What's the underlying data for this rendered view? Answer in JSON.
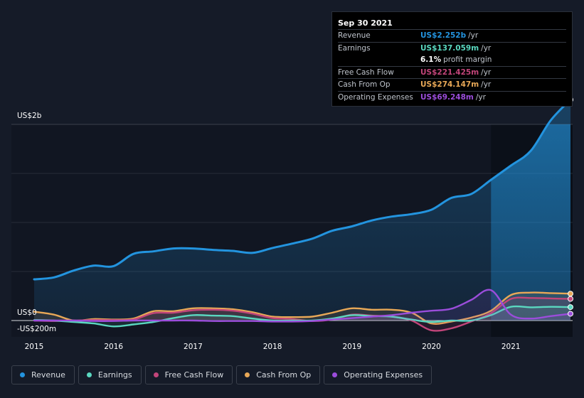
{
  "colors": {
    "background": "#151b28",
    "plot_bg": "#111622",
    "revenue": "#2394df",
    "earnings": "#5ad8c0",
    "free_cash_flow": "#c2457a",
    "cash_from_op": "#e8a857",
    "operating_expenses": "#9b4ddb",
    "grid": "#262c38",
    "axis_text": "#ffffff"
  },
  "tooltip": {
    "date": "Sep 30 2021",
    "rows": [
      {
        "label": "Revenue",
        "value": "US$2.252b",
        "unit": "/yr",
        "color": "#2394df"
      },
      {
        "label": "Earnings",
        "value": "US$137.059m",
        "unit": "/yr",
        "color": "#5ad8c0"
      },
      {
        "label": "",
        "value": "6.1%",
        "unit": "profit margin",
        "color": "#ffffff"
      },
      {
        "label": "Free Cash Flow",
        "value": "US$221.425m",
        "unit": "/yr",
        "color": "#c2457a"
      },
      {
        "label": "Cash From Op",
        "value": "US$274.147m",
        "unit": "/yr",
        "color": "#e8a857"
      },
      {
        "label": "Operating Expenses",
        "value": "US$69.248m",
        "unit": "/yr",
        "color": "#9b4ddb"
      }
    ]
  },
  "legend": [
    {
      "label": "Revenue",
      "color": "#2394df",
      "icon": "revenue-dot-icon"
    },
    {
      "label": "Earnings",
      "color": "#5ad8c0",
      "icon": "earnings-dot-icon"
    },
    {
      "label": "Free Cash Flow",
      "color": "#c2457a",
      "icon": "free-cash-flow-dot-icon"
    },
    {
      "label": "Cash From Op",
      "color": "#e8a857",
      "icon": "cash-from-op-dot-icon"
    },
    {
      "label": "Operating Expenses",
      "color": "#9b4ddb",
      "icon": "operating-expenses-dot-icon"
    }
  ],
  "chart_data": {
    "type": "line",
    "title": "",
    "y_unit": "US$m",
    "ylim": [
      -200,
      2400
    ],
    "y_tick_labels": [
      {
        "value": 2000,
        "label": "US$2b"
      },
      {
        "value": 0,
        "label": "US$0"
      },
      {
        "value": -200,
        "label": "-US$200m"
      }
    ],
    "x_range": [
      2015.0,
      2021.75
    ],
    "x_tick_labels": [
      "2015",
      "2016",
      "2017",
      "2018",
      "2019",
      "2020",
      "2021"
    ],
    "highlight_range": [
      2020.75,
      2021.75
    ],
    "series": [
      {
        "name": "Revenue",
        "key": "revenue",
        "fill": true,
        "points": [
          [
            2015.0,
            420
          ],
          [
            2015.25,
            440
          ],
          [
            2015.5,
            510
          ],
          [
            2015.75,
            560
          ],
          [
            2016.0,
            555
          ],
          [
            2016.25,
            680
          ],
          [
            2016.5,
            705
          ],
          [
            2016.75,
            735
          ],
          [
            2017.0,
            735
          ],
          [
            2017.25,
            720
          ],
          [
            2017.5,
            710
          ],
          [
            2017.75,
            690
          ],
          [
            2018.0,
            740
          ],
          [
            2018.25,
            785
          ],
          [
            2018.5,
            835
          ],
          [
            2018.75,
            915
          ],
          [
            2019.0,
            960
          ],
          [
            2019.25,
            1020
          ],
          [
            2019.5,
            1060
          ],
          [
            2019.75,
            1085
          ],
          [
            2020.0,
            1130
          ],
          [
            2020.25,
            1250
          ],
          [
            2020.5,
            1290
          ],
          [
            2020.75,
            1435
          ],
          [
            2021.0,
            1580
          ],
          [
            2021.25,
            1730
          ],
          [
            2021.5,
            2040
          ],
          [
            2021.75,
            2252
          ]
        ]
      },
      {
        "name": "Earnings",
        "key": "earnings",
        "points": [
          [
            2015.0,
            5
          ],
          [
            2015.25,
            0
          ],
          [
            2015.5,
            -15
          ],
          [
            2015.75,
            -30
          ],
          [
            2016.0,
            -60
          ],
          [
            2016.25,
            -40
          ],
          [
            2016.5,
            -15
          ],
          [
            2016.75,
            25
          ],
          [
            2017.0,
            55
          ],
          [
            2017.25,
            50
          ],
          [
            2017.5,
            45
          ],
          [
            2017.75,
            20
          ],
          [
            2018.0,
            0
          ],
          [
            2018.25,
            0
          ],
          [
            2018.5,
            0
          ],
          [
            2018.75,
            20
          ],
          [
            2019.0,
            55
          ],
          [
            2019.25,
            45
          ],
          [
            2019.5,
            40
          ],
          [
            2019.75,
            10
          ],
          [
            2020.0,
            -15
          ],
          [
            2020.25,
            0
          ],
          [
            2020.5,
            0
          ],
          [
            2020.75,
            55
          ],
          [
            2021.0,
            140
          ],
          [
            2021.25,
            135
          ],
          [
            2021.5,
            140
          ],
          [
            2021.75,
            137
          ]
        ]
      },
      {
        "name": "Free Cash Flow",
        "key": "free_cash_flow",
        "points": [
          [
            2015.0,
            0
          ],
          [
            2015.25,
            -5
          ],
          [
            2015.5,
            0
          ],
          [
            2015.75,
            5
          ],
          [
            2016.0,
            5
          ],
          [
            2016.25,
            10
          ],
          [
            2016.5,
            75
          ],
          [
            2016.75,
            80
          ],
          [
            2017.0,
            105
          ],
          [
            2017.25,
            110
          ],
          [
            2017.5,
            100
          ],
          [
            2017.75,
            70
          ],
          [
            2018.0,
            25
          ],
          [
            2018.25,
            15
          ],
          [
            2018.5,
            -5
          ],
          [
            2018.75,
            10
          ],
          [
            2019.0,
            60
          ],
          [
            2019.25,
            50
          ],
          [
            2019.5,
            40
          ],
          [
            2019.75,
            0
          ],
          [
            2020.0,
            -100
          ],
          [
            2020.25,
            -80
          ],
          [
            2020.5,
            -10
          ],
          [
            2020.75,
            75
          ],
          [
            2021.0,
            220
          ],
          [
            2021.25,
            230
          ],
          [
            2021.5,
            225
          ],
          [
            2021.75,
            221
          ]
        ]
      },
      {
        "name": "Cash From Op",
        "key": "cash_from_op",
        "points": [
          [
            2015.0,
            90
          ],
          [
            2015.25,
            60
          ],
          [
            2015.5,
            0
          ],
          [
            2015.75,
            15
          ],
          [
            2016.0,
            10
          ],
          [
            2016.25,
            20
          ],
          [
            2016.5,
            95
          ],
          [
            2016.75,
            95
          ],
          [
            2017.0,
            125
          ],
          [
            2017.25,
            125
          ],
          [
            2017.5,
            115
          ],
          [
            2017.75,
            85
          ],
          [
            2018.0,
            40
          ],
          [
            2018.25,
            35
          ],
          [
            2018.5,
            40
          ],
          [
            2018.75,
            80
          ],
          [
            2019.0,
            125
          ],
          [
            2019.25,
            110
          ],
          [
            2019.5,
            110
          ],
          [
            2019.75,
            80
          ],
          [
            2020.0,
            -30
          ],
          [
            2020.25,
            -10
          ],
          [
            2020.5,
            30
          ],
          [
            2020.75,
            100
          ],
          [
            2021.0,
            260
          ],
          [
            2021.25,
            285
          ],
          [
            2021.5,
            280
          ],
          [
            2021.75,
            274
          ]
        ]
      },
      {
        "name": "Operating Expenses",
        "key": "operating_expenses",
        "points": [
          [
            2015.0,
            0
          ],
          [
            2015.25,
            0
          ],
          [
            2015.5,
            0
          ],
          [
            2015.75,
            -5
          ],
          [
            2016.0,
            -5
          ],
          [
            2016.25,
            0
          ],
          [
            2016.5,
            0
          ],
          [
            2016.75,
            0
          ],
          [
            2017.0,
            0
          ],
          [
            2017.25,
            -5
          ],
          [
            2017.5,
            -5
          ],
          [
            2017.75,
            -5
          ],
          [
            2018.0,
            -10
          ],
          [
            2018.25,
            -10
          ],
          [
            2018.5,
            -5
          ],
          [
            2018.75,
            10
          ],
          [
            2019.0,
            25
          ],
          [
            2019.25,
            40
          ],
          [
            2019.5,
            55
          ],
          [
            2019.75,
            80
          ],
          [
            2020.0,
            100
          ],
          [
            2020.25,
            120
          ],
          [
            2020.5,
            210
          ],
          [
            2020.75,
            310
          ],
          [
            2021.0,
            60
          ],
          [
            2021.25,
            20
          ],
          [
            2021.5,
            45
          ],
          [
            2021.75,
            69
          ]
        ]
      }
    ]
  }
}
